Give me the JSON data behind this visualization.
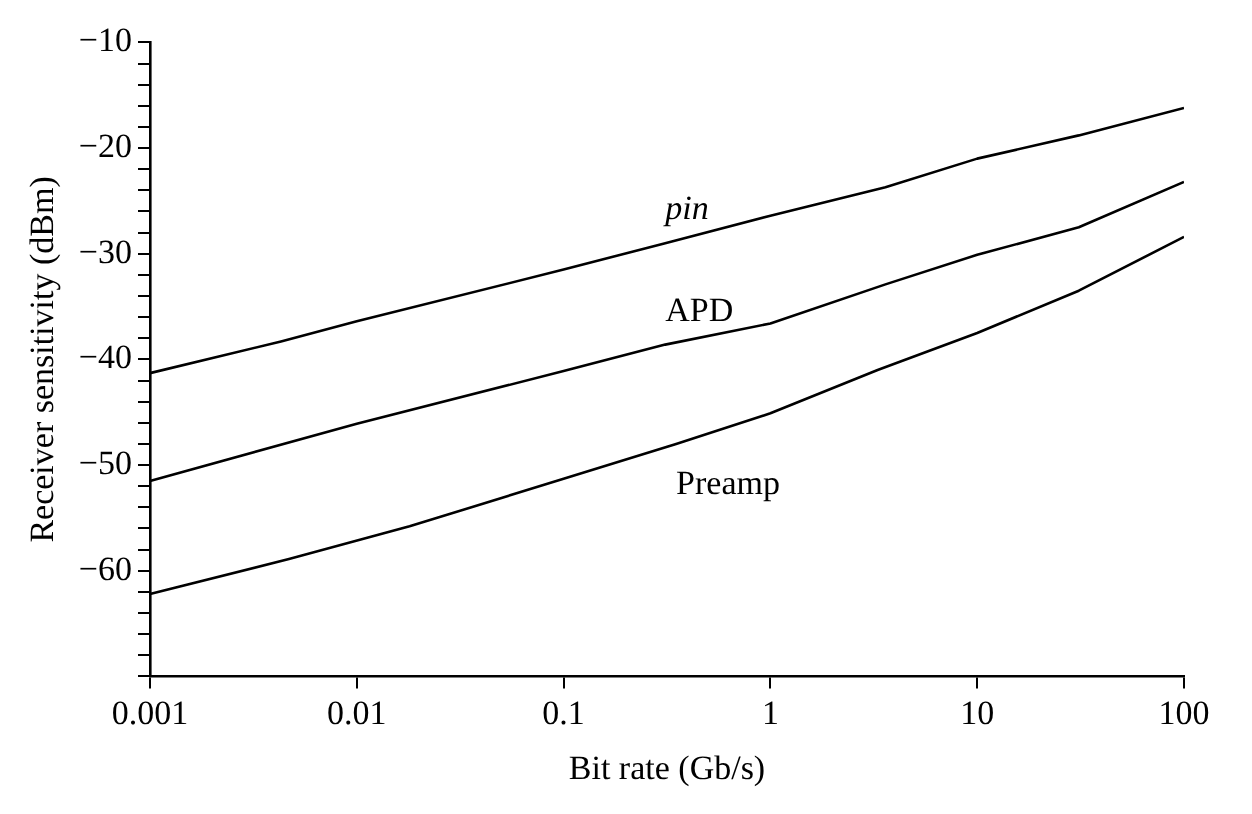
{
  "chart_data": {
    "type": "line",
    "xlabel": "Bit rate (Gb/s)",
    "ylabel": "Receiver sensitivity (dBm)",
    "log": "x",
    "xlim": [
      0.001,
      100
    ],
    "xticks": [
      0.001,
      0.01,
      0.1,
      1,
      10,
      100
    ],
    "ylim": [
      -70,
      -10
    ],
    "yticks": [
      -10,
      {
        "value": -12,
        "label": null
      },
      {
        "value": -14,
        "label": null
      },
      {
        "value": -16,
        "label": null
      },
      {
        "value": -18,
        "label": null
      },
      -20,
      {
        "value": -22,
        "label": null
      },
      {
        "value": -24,
        "label": null
      },
      {
        "value": -26,
        "label": null
      },
      {
        "value": -28,
        "label": null
      },
      -30,
      {
        "value": -32,
        "label": null
      },
      {
        "value": -34,
        "label": null
      },
      {
        "value": -36,
        "label": null
      },
      {
        "value": -38,
        "label": null
      },
      -40,
      {
        "value": -42,
        "label": null
      },
      {
        "value": -44,
        "label": null
      },
      {
        "value": -46,
        "label": null
      },
      {
        "value": -48,
        "label": null
      },
      -50,
      {
        "value": -52,
        "label": null
      },
      {
        "value": -54,
        "label": null
      },
      {
        "value": -56,
        "label": null
      },
      {
        "value": -58,
        "label": null
      },
      -60,
      {
        "value": -62,
        "label": null
      },
      {
        "value": -64,
        "label": null
      },
      {
        "value": -66,
        "label": null
      },
      {
        "value": -68,
        "label": null
      },
      {
        "value": -70,
        "label": null
      }
    ],
    "grid": false,
    "legend": false,
    "marker": "none",
    "line_style": "solid",
    "series": [
      {
        "name": "pin",
        "color": "#000000",
        "x": [
          0.001,
          0.0043,
          0.01,
          0.1,
          0.31,
          1,
          3.6,
          10,
          31,
          100
        ],
        "values": [
          -41.3,
          -38.3,
          -36.4,
          -31.5,
          -29,
          -26.4,
          -23.7,
          -21,
          -18.8,
          -16.2
        ]
      },
      {
        "name": "APD",
        "color": "#000000",
        "x": [
          0.001,
          0.01,
          0.1,
          0.31,
          1,
          3.6,
          10,
          31,
          100
        ],
        "values": [
          -51.5,
          -46.1,
          -41.1,
          -38.6,
          -36.6,
          -32.9,
          -30.1,
          -27.5,
          -23.2
        ]
      },
      {
        "name": "Preamp",
        "color": "#000000",
        "x": [
          0.001,
          0.0047,
          0.018,
          0.1,
          0.35,
          1,
          3.3,
          10,
          31,
          100
        ],
        "values": [
          -62.2,
          -58.9,
          -55.8,
          -51.3,
          -48,
          -45.1,
          -41,
          -37.5,
          -33.5,
          -28.4
        ]
      }
    ]
  }
}
